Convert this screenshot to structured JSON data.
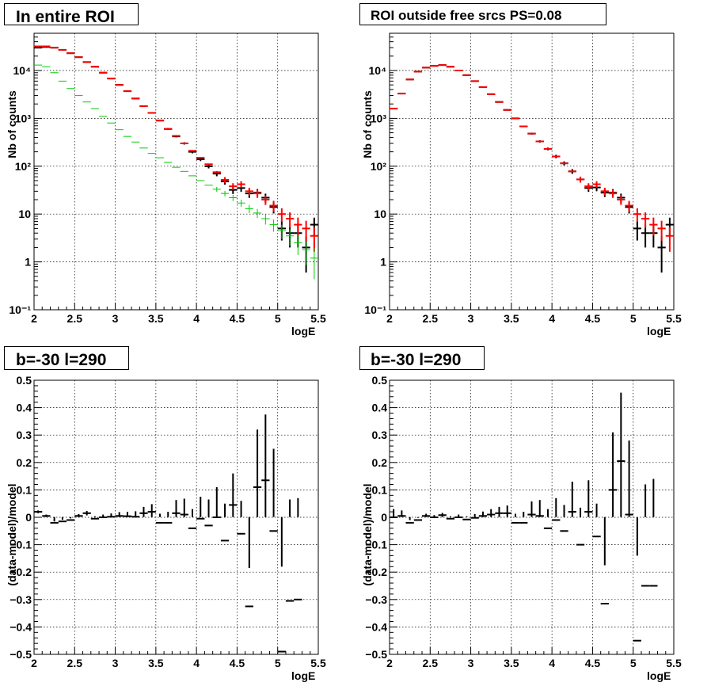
{
  "panel_titles": {
    "top_left": "In entire ROI",
    "top_right": "ROI outside free srcs PS=0.08",
    "bottom_left": "b=-30 l=290",
    "bottom_right": "b=-30 l=290"
  },
  "colors": {
    "data": "#000000",
    "model": "#ff0000",
    "component": "#00cc00",
    "model_overlay_entire": "#6a2cb0"
  },
  "chart_data": [
    {
      "type": "line",
      "panel": "top-left",
      "title": "In entire ROI",
      "xlabel": "logE",
      "ylabel": "Nb of counts",
      "xlim": [
        2,
        5.5
      ],
      "ylim": [
        0.1,
        60000
      ],
      "yscale": "log",
      "grid": true,
      "x_ticks": [
        "2",
        "2.5",
        "3",
        "3.5",
        "4",
        "4.5",
        "5",
        "5.5"
      ],
      "y_ticks": [
        "10⁻¹",
        "1",
        "10",
        "10²",
        "10³",
        "10⁴"
      ],
      "bin_width": 0.1,
      "x": [
        2.05,
        2.15,
        2.25,
        2.35,
        2.45,
        2.55,
        2.65,
        2.75,
        2.85,
        2.95,
        3.05,
        3.15,
        3.25,
        3.35,
        3.45,
        3.55,
        3.65,
        3.75,
        3.85,
        3.95,
        4.05,
        4.15,
        4.25,
        4.35,
        4.45,
        4.55,
        4.65,
        4.75,
        4.85,
        4.95,
        5.05,
        5.15,
        5.25,
        5.35,
        5.45
      ],
      "series": [
        {
          "role": "data",
          "color": "#000000",
          "values": [
            30000,
            31000,
            30000,
            27000,
            23000,
            19000,
            15000,
            12000,
            9000,
            6800,
            5000,
            3700,
            2600,
            1800,
            1300,
            900,
            600,
            420,
            300,
            200,
            140,
            100,
            70,
            48,
            32,
            35,
            27,
            28,
            22,
            14,
            5,
            4,
            4,
            2,
            6
          ],
          "errors": [
            173,
            176,
            173,
            164,
            152,
            138,
            122,
            110,
            95,
            82,
            71,
            61,
            51,
            42,
            36,
            30,
            24,
            20,
            17,
            14,
            12,
            10,
            8.4,
            6.9,
            5.7,
            5.9,
            5.2,
            5.3,
            4.7,
            3.7,
            2.2,
            2,
            2,
            1.4,
            2.4
          ]
        },
        {
          "role": "model",
          "color": "#ff0000",
          "values": [
            32000,
            32000,
            30000,
            27000,
            23000,
            19000,
            15000,
            12000,
            9000,
            6800,
            5000,
            3700,
            2600,
            1800,
            1300,
            900,
            600,
            430,
            300,
            210,
            150,
            110,
            75,
            52,
            38,
            42,
            30,
            27,
            20,
            15,
            10,
            8,
            6,
            5,
            3.5
          ]
        },
        {
          "role": "component",
          "color": "#00cc00",
          "values": [
            13000,
            12000,
            9000,
            6000,
            4200,
            3000,
            2200,
            1600,
            1100,
            800,
            580,
            420,
            320,
            240,
            185,
            150,
            120,
            95,
            78,
            63,
            50,
            40,
            33,
            27,
            22,
            17,
            13,
            10.5,
            8,
            6,
            4.5,
            3.5,
            2.5,
            1.8,
            1.2
          ]
        }
      ]
    },
    {
      "type": "line",
      "panel": "top-right",
      "title": "ROI outside free srcs PS=0.08",
      "xlabel": "logE",
      "ylabel": "Nb of counts",
      "xlim": [
        2,
        5.5
      ],
      "ylim": [
        0.1,
        60000
      ],
      "yscale": "log",
      "grid": true,
      "x_ticks": [
        "2",
        "2.5",
        "3",
        "3.5",
        "4",
        "4.5",
        "5",
        "5.5"
      ],
      "y_ticks": [
        "10⁻¹",
        "1",
        "10",
        "10²",
        "10³",
        "10⁴"
      ],
      "bin_width": 0.1,
      "x": [
        2.05,
        2.15,
        2.25,
        2.35,
        2.45,
        2.55,
        2.65,
        2.75,
        2.85,
        2.95,
        3.05,
        3.15,
        3.25,
        3.35,
        3.45,
        3.55,
        3.65,
        3.75,
        3.85,
        3.95,
        4.05,
        4.15,
        4.25,
        4.35,
        4.45,
        4.55,
        4.65,
        4.75,
        4.85,
        4.95,
        5.05,
        5.15,
        5.25,
        5.35,
        5.45
      ],
      "series": [
        {
          "role": "data",
          "color": "#000000",
          "values": [
            1600,
            3300,
            6500,
            9500,
            11500,
            12500,
            13000,
            12000,
            10000,
            8000,
            6000,
            4500,
            3200,
            2200,
            1500,
            1000,
            680,
            480,
            330,
            230,
            160,
            115,
            78,
            53,
            35,
            36,
            28,
            28,
            22,
            14,
            5,
            4,
            4,
            2,
            6
          ],
          "errors": [
            40,
            57,
            81,
            97,
            107,
            112,
            114,
            110,
            100,
            89,
            77,
            67,
            57,
            47,
            39,
            32,
            26,
            22,
            18,
            15,
            13,
            11,
            8.8,
            7.3,
            5.9,
            6,
            5.3,
            5.3,
            4.7,
            3.7,
            2.2,
            2,
            2,
            1.4,
            2.4
          ]
        },
        {
          "role": "model",
          "color": "#ff0000",
          "values": [
            1600,
            3300,
            6500,
            9500,
            11500,
            12500,
            13000,
            12000,
            10000,
            8000,
            6000,
            4500,
            3200,
            2200,
            1500,
            1000,
            680,
            480,
            330,
            230,
            160,
            115,
            78,
            53,
            38,
            42,
            30,
            27,
            20,
            15,
            10,
            8,
            6,
            5,
            3.5
          ]
        }
      ]
    },
    {
      "type": "scatter",
      "panel": "bottom-left",
      "title": "b=-30 l=290",
      "xlabel": "logE",
      "ylabel": "(data-model)/model",
      "xlim": [
        2,
        5.5
      ],
      "ylim": [
        -0.5,
        0.5
      ],
      "grid": true,
      "x_ticks": [
        "2",
        "2.5",
        "3",
        "3.5",
        "4",
        "4.5",
        "5",
        "5.5"
      ],
      "y_ticks": [
        "−0.5",
        "−0.4",
        "−0.3",
        "−0.2",
        "−0.1",
        "0",
        "0.1",
        "0.2",
        "0.3",
        "0.4",
        "0.5"
      ],
      "bin_width": 0.1,
      "x": [
        2.05,
        2.15,
        2.25,
        2.35,
        2.45,
        2.55,
        2.65,
        2.75,
        2.85,
        2.95,
        3.05,
        3.15,
        3.25,
        3.35,
        3.45,
        3.55,
        3.65,
        3.75,
        3.85,
        3.95,
        4.05,
        4.15,
        4.25,
        4.35,
        4.45,
        4.55,
        4.65,
        4.75,
        4.85,
        4.95,
        5.05,
        5.15,
        5.25
      ],
      "series": [
        {
          "role": "residual",
          "color": "#000000",
          "values": [
            0.02,
            0.005,
            -0.02,
            -0.015,
            -0.01,
            0.005,
            0.015,
            -0.005,
            0.0,
            0.002,
            0.005,
            0.004,
            0.002,
            0.015,
            0.02,
            -0.02,
            -0.02,
            0.015,
            0.01,
            -0.04,
            -0.005,
            -0.03,
            0.0,
            -0.085,
            0.045,
            -0.06,
            -0.325,
            0.11,
            0.135,
            -0.05,
            -0.49,
            -0.305,
            -0.3
          ],
          "errors": [
            0.005,
            0.005,
            0.005,
            0.006,
            0.006,
            0.007,
            0.008,
            0.009,
            0.01,
            0.012,
            0.014,
            0.016,
            0.02,
            0.023,
            0.028,
            0.033,
            0.04,
            0.048,
            0.058,
            0.07,
            0.08,
            0.095,
            0.11,
            0.135,
            0.115,
            0.12,
            0.14,
            0.21,
            0.24,
            0.3,
            0.31,
            0.37,
            0.37
          ]
        }
      ]
    },
    {
      "type": "scatter",
      "panel": "bottom-right",
      "title": "b=-30 l=290",
      "xlabel": "logE",
      "ylabel": "(data-model)/model",
      "xlim": [
        2,
        5.5
      ],
      "ylim": [
        -0.5,
        0.5
      ],
      "grid": true,
      "x_ticks": [
        "2",
        "2.5",
        "3",
        "3.5",
        "4",
        "4.5",
        "5",
        "5.5"
      ],
      "y_ticks": [
        "−0.5",
        "−0.4",
        "−0.3",
        "−0.2",
        "−0.1",
        "0",
        "0.1",
        "0.2",
        "0.3",
        "0.4",
        "0.5"
      ],
      "bin_width": 0.1,
      "x": [
        2.05,
        2.15,
        2.25,
        2.35,
        2.45,
        2.55,
        2.65,
        2.75,
        2.85,
        2.95,
        3.05,
        3.15,
        3.25,
        3.35,
        3.45,
        3.55,
        3.65,
        3.75,
        3.85,
        3.95,
        4.05,
        4.15,
        4.25,
        4.35,
        4.45,
        4.55,
        4.65,
        4.75,
        4.85,
        4.95,
        5.05,
        5.15,
        5.25
      ],
      "series": [
        {
          "role": "residual",
          "color": "#000000",
          "values": [
            0.0,
            0.005,
            -0.02,
            -0.01,
            0.005,
            0.0,
            0.008,
            -0.005,
            0.0,
            -0.008,
            -0.002,
            0.005,
            0.01,
            0.015,
            0.015,
            -0.02,
            -0.02,
            0.01,
            0.005,
            -0.04,
            -0.01,
            -0.05,
            0.02,
            -0.1,
            0.02,
            -0.07,
            -0.315,
            0.1,
            0.205,
            0.01,
            -0.45,
            -0.25,
            -0.25
          ],
          "errors": [
            0.03,
            0.02,
            0.01,
            0.008,
            0.008,
            0.008,
            0.008,
            0.009,
            0.01,
            0.012,
            0.014,
            0.016,
            0.02,
            0.023,
            0.028,
            0.033,
            0.04,
            0.048,
            0.058,
            0.07,
            0.08,
            0.095,
            0.11,
            0.135,
            0.115,
            0.12,
            0.14,
            0.21,
            0.25,
            0.27,
            0.31,
            0.37,
            0.39
          ]
        }
      ]
    }
  ]
}
